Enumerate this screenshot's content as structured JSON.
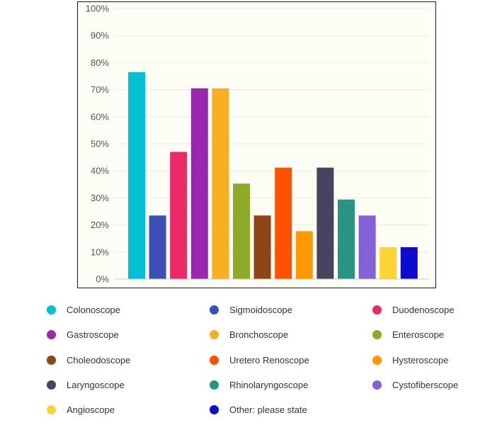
{
  "chart_data": {
    "type": "bar",
    "categories": [
      "Colonoscope",
      "Sigmoidoscope",
      "Duodenoscope",
      "Gastroscope",
      "Bronchoscope",
      "Enteroscope",
      "Choleodoscope",
      "Uretero Renoscope",
      "Hysteroscope",
      "Laryngoscope",
      "Rhinolaryngoscope",
      "Cystofiberscope",
      "Angioscope",
      "Other: please state"
    ],
    "values": [
      76.5,
      23.5,
      47,
      70.5,
      70.5,
      35.3,
      23.5,
      41.2,
      17.7,
      41.2,
      29.4,
      23.5,
      11.8,
      11.8
    ],
    "colors": [
      "#00c0d4",
      "#3b4fb4",
      "#ed2a66",
      "#9b27b0",
      "#f7b024",
      "#8eaa2b",
      "#8b4516",
      "#ff5200",
      "#ff9800",
      "#4a4360",
      "#2a9383",
      "#8260d6",
      "#ffd534",
      "#0c0cce"
    ],
    "yticks": [
      "0%",
      "10%",
      "20%",
      "30%",
      "40%",
      "50%",
      "60%",
      "70%",
      "80%",
      "90%",
      "100%"
    ],
    "ylim": [
      0,
      100
    ],
    "grid": true,
    "legend_position": "bottom"
  }
}
